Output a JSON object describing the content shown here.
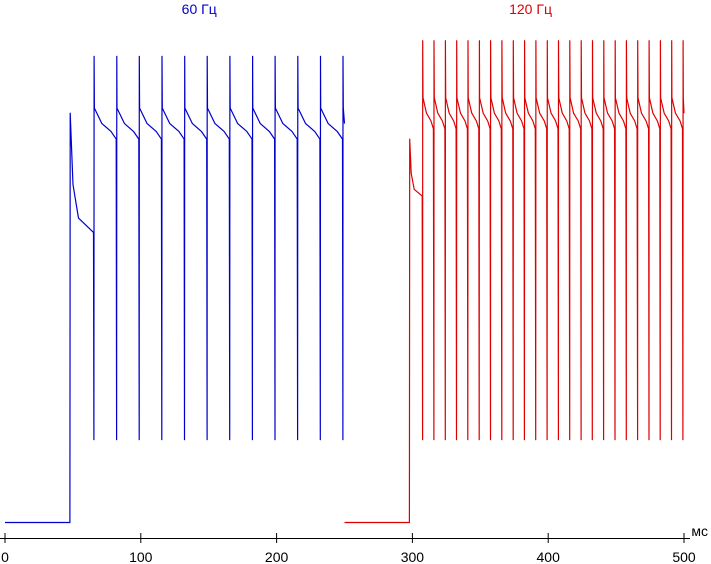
{
  "chart_data": {
    "type": "line",
    "title": "",
    "xlabel": "",
    "x_unit": "мс",
    "ylabel": "",
    "xlim": [
      0,
      500
    ],
    "ylim": [
      0,
      1
    ],
    "x_ticks": [
      0,
      100,
      200,
      300,
      400,
      500
    ],
    "grid": false,
    "legend": "none",
    "baseline_level": 0.03,
    "series": [
      {
        "name": "60 Гц",
        "color": "#0000cc",
        "start_ms": 0,
        "end_ms": 250,
        "on_ms": 48,
        "first_peak": 0.82,
        "first_settle": 0.59,
        "settle_level": 0.8,
        "peak_level": 0.93,
        "trough_level": 0.19,
        "pulse_times_ms": [
          65.5,
          82.2,
          98.8,
          115.5,
          132.2,
          148.8,
          165.5,
          182.2,
          198.8,
          215.5,
          232.2,
          248.8
        ]
      },
      {
        "name": "120 Гц",
        "color": "#dd0000",
        "start_ms": 250,
        "end_ms": 500,
        "on_ms": 298,
        "first_peak": 0.77,
        "first_settle": 0.66,
        "settle_level": 0.82,
        "peak_level": 0.96,
        "trough_level": 0.19,
        "pulse_times_ms": [
          307.5,
          315.8,
          324.2,
          332.5,
          340.8,
          349.2,
          357.5,
          365.8,
          374.2,
          382.5,
          390.8,
          399.2,
          407.5,
          415.8,
          424.2,
          432.5,
          440.8,
          449.2,
          457.5,
          465.8,
          474.2,
          482.5,
          490.8,
          499.2
        ]
      }
    ]
  }
}
